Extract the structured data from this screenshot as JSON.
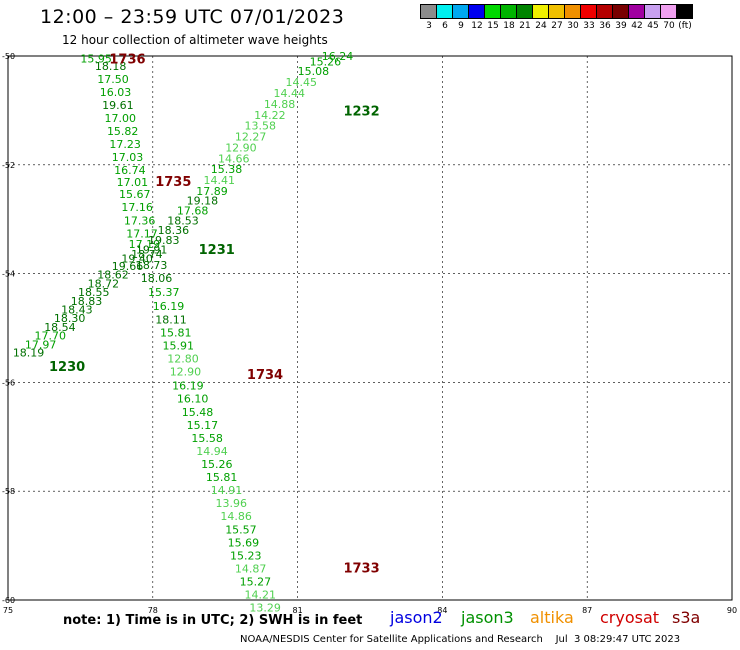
{
  "header": {
    "title": "12:00 – 23:59 UTC 07/01/2023",
    "subtitle": "12 hour collection of altimeter wave heights"
  },
  "scale": {
    "colors": [
      "#8c8c8c",
      "#00f0f0",
      "#00a8f0",
      "#0000f0",
      "#00d800",
      "#00b400",
      "#008400",
      "#f0f000",
      "#f0c000",
      "#f09000",
      "#f00000",
      "#b40000",
      "#780000",
      "#a000a0",
      "#c8a0f0",
      "#f0a0f0",
      "#000000"
    ],
    "labels": [
      "3",
      "6",
      "9",
      "12",
      "15",
      "18",
      "21",
      "24",
      "27",
      "30",
      "33",
      "36",
      "39",
      "42",
      "45",
      "70",
      "(ft)"
    ]
  },
  "axes": {
    "lon_labels": [
      "75",
      "78",
      "81",
      "84",
      "87",
      "90"
    ],
    "lat_labels": [
      "-50",
      "-52",
      "-54",
      "-56",
      "-58",
      "-60"
    ]
  },
  "tracks": [
    {
      "name": "A",
      "points": [
        {
          "lon": 76.5,
          "lat": -50.05,
          "swh": "15.95"
        },
        {
          "lon": 76.8,
          "lat": -50.18,
          "swh": "18.18"
        },
        {
          "lon": 76.85,
          "lat": -50.42,
          "swh": "17.50"
        },
        {
          "lon": 76.9,
          "lat": -50.66,
          "swh": "16.03"
        },
        {
          "lon": 76.95,
          "lat": -50.9,
          "swh": "19.61"
        },
        {
          "lon": 77.0,
          "lat": -51.14,
          "swh": "17.00"
        },
        {
          "lon": 77.05,
          "lat": -51.38,
          "swh": "15.82"
        },
        {
          "lon": 77.1,
          "lat": -51.62,
          "swh": "17.23"
        },
        {
          "lon": 77.15,
          "lat": -51.86,
          "swh": "17.03"
        },
        {
          "lon": 77.2,
          "lat": -52.1,
          "swh": "16.74"
        },
        {
          "lon": 77.25,
          "lat": -52.32,
          "swh": "17.01"
        },
        {
          "lon": 77.3,
          "lat": -52.54,
          "swh": "15.67"
        },
        {
          "lon": 77.35,
          "lat": -52.78,
          "swh": "17.16"
        },
        {
          "lon": 77.4,
          "lat": -53.02,
          "swh": "17.36"
        },
        {
          "lon": 77.45,
          "lat": -53.26,
          "swh": "17.17"
        },
        {
          "lon": 77.5,
          "lat": -53.46,
          "swh": "17.19"
        },
        {
          "lon": 77.55,
          "lat": -53.64,
          "swh": "18.74"
        },
        {
          "lon": 77.65,
          "lat": -53.84,
          "swh": "18.73"
        },
        {
          "lon": 77.75,
          "lat": -54.08,
          "swh": "18.06"
        },
        {
          "lon": 77.9,
          "lat": -54.34,
          "swh": "15.37"
        },
        {
          "lon": 78.0,
          "lat": -54.6,
          "swh": "16.19"
        },
        {
          "lon": 78.05,
          "lat": -54.84,
          "swh": "18.11"
        },
        {
          "lon": 78.15,
          "lat": -55.08,
          "swh": "15.81"
        },
        {
          "lon": 78.2,
          "lat": -55.32,
          "swh": "15.91"
        },
        {
          "lon": 78.3,
          "lat": -55.56,
          "swh": "12.80"
        },
        {
          "lon": 78.35,
          "lat": -55.8,
          "swh": "12.90"
        },
        {
          "lon": 78.4,
          "lat": -56.06,
          "swh": "16.19"
        },
        {
          "lon": 78.5,
          "lat": -56.3,
          "swh": "16.10"
        },
        {
          "lon": 78.6,
          "lat": -56.54,
          "swh": "15.48"
        },
        {
          "lon": 78.7,
          "lat": -56.78,
          "swh": "15.17"
        },
        {
          "lon": 78.8,
          "lat": -57.02,
          "swh": "15.58"
        },
        {
          "lon": 78.9,
          "lat": -57.26,
          "swh": "14.94"
        },
        {
          "lon": 79.0,
          "lat": -57.5,
          "swh": "15.26"
        },
        {
          "lon": 79.1,
          "lat": -57.74,
          "swh": "15.81"
        },
        {
          "lon": 79.2,
          "lat": -57.98,
          "swh": "14.91"
        },
        {
          "lon": 79.3,
          "lat": -58.22,
          "swh": "13.96"
        },
        {
          "lon": 79.4,
          "lat": -58.46,
          "swh": "14.86"
        },
        {
          "lon": 79.5,
          "lat": -58.7,
          "swh": "15.57"
        },
        {
          "lon": 79.55,
          "lat": -58.94,
          "swh": "15.69"
        },
        {
          "lon": 79.6,
          "lat": -59.18,
          "swh": "15.23"
        },
        {
          "lon": 79.7,
          "lat": -59.42,
          "swh": "14.87"
        },
        {
          "lon": 79.8,
          "lat": -59.66,
          "swh": "15.27"
        },
        {
          "lon": 79.9,
          "lat": -59.9,
          "swh": "14.21"
        },
        {
          "lon": 80.0,
          "lat": -60.14,
          "swh": "13.29"
        }
      ]
    },
    {
      "name": "B",
      "points": [
        {
          "lon": 75.1,
          "lat": -55.45,
          "swh": "18.19"
        },
        {
          "lon": 75.35,
          "lat": -55.3,
          "swh": "17.97"
        },
        {
          "lon": 75.55,
          "lat": -55.14,
          "swh": "17.70"
        },
        {
          "lon": 75.75,
          "lat": -54.98,
          "swh": "18.54"
        },
        {
          "lon": 75.95,
          "lat": -54.82,
          "swh": "18.30"
        },
        {
          "lon": 76.1,
          "lat": -54.66,
          "swh": "18.43"
        },
        {
          "lon": 76.3,
          "lat": -54.5,
          "swh": "18.83"
        },
        {
          "lon": 76.45,
          "lat": -54.34,
          "swh": "18.55"
        },
        {
          "lon": 76.65,
          "lat": -54.18,
          "swh": "18.72"
        },
        {
          "lon": 76.85,
          "lat": -54.02,
          "swh": "18.62"
        },
        {
          "lon": 77.15,
          "lat": -53.86,
          "swh": "19.66"
        },
        {
          "lon": 77.35,
          "lat": -53.72,
          "swh": "19.40"
        },
        {
          "lon": 77.65,
          "lat": -53.56,
          "swh": "19.91"
        },
        {
          "lon": 77.9,
          "lat": -53.38,
          "swh": "19.83"
        },
        {
          "lon": 78.1,
          "lat": -53.2,
          "swh": "18.36"
        },
        {
          "lon": 78.3,
          "lat": -53.02,
          "swh": "18.53"
        },
        {
          "lon": 78.5,
          "lat": -52.84,
          "swh": "17.68"
        },
        {
          "lon": 78.7,
          "lat": -52.66,
          "swh": "19.18"
        },
        {
          "lon": 78.9,
          "lat": -52.48,
          "swh": "17.89"
        },
        {
          "lon": 79.05,
          "lat": -52.28,
          "swh": "14.41"
        },
        {
          "lon": 79.2,
          "lat": -52.08,
          "swh": "15.38"
        },
        {
          "lon": 79.35,
          "lat": -51.88,
          "swh": "14.66"
        },
        {
          "lon": 79.5,
          "lat": -51.68,
          "swh": "12.90"
        },
        {
          "lon": 79.7,
          "lat": -51.48,
          "swh": "12.27"
        },
        {
          "lon": 79.9,
          "lat": -51.28,
          "swh": "13.58"
        },
        {
          "lon": 80.1,
          "lat": -51.08,
          "swh": "14.22"
        },
        {
          "lon": 80.3,
          "lat": -50.88,
          "swh": "14.88"
        },
        {
          "lon": 80.5,
          "lat": -50.68,
          "swh": "14.44"
        },
        {
          "lon": 80.75,
          "lat": -50.48,
          "swh": "14.45"
        },
        {
          "lon": 81.0,
          "lat": -50.28,
          "swh": "15.08"
        },
        {
          "lon": 81.25,
          "lat": -50.1,
          "swh": "15.26"
        },
        {
          "lon": 81.5,
          "lat": -50.0,
          "swh": "16.24"
        }
      ]
    }
  ],
  "pass_labels": [
    {
      "text": "1736",
      "lon": 77.1,
      "lat": -50.05,
      "color": "#800000"
    },
    {
      "text": "1735",
      "lon": 78.05,
      "lat": -52.3,
      "color": "#800000"
    },
    {
      "text": "1734",
      "lon": 79.95,
      "lat": -55.85,
      "color": "#800000"
    },
    {
      "text": "1733",
      "lon": 81.95,
      "lat": -59.4,
      "color": "#800000"
    },
    {
      "text": "1232",
      "lon": 81.95,
      "lat": -51.0,
      "color": "#006400"
    },
    {
      "text": "1231",
      "lon": 78.95,
      "lat": -53.55,
      "color": "#006400"
    },
    {
      "text": "1230",
      "lon": 75.85,
      "lat": -55.7,
      "color": "#006400"
    }
  ],
  "note": "note:  1) Time is in UTC; 2) SWH is in feet",
  "satellites": [
    {
      "name": "jason2",
      "color": "#0000e0"
    },
    {
      "name": "jason3",
      "color": "#009000"
    },
    {
      "name": "altika",
      "color": "#f09000"
    },
    {
      "name": "cryosat",
      "color": "#d00000"
    },
    {
      "name": "s3a",
      "color": "#800000"
    }
  ],
  "footer": "NOAA/NESDIS Center for Satellite Applications and Research    Jul  3 08:29:47 UTC 2023"
}
